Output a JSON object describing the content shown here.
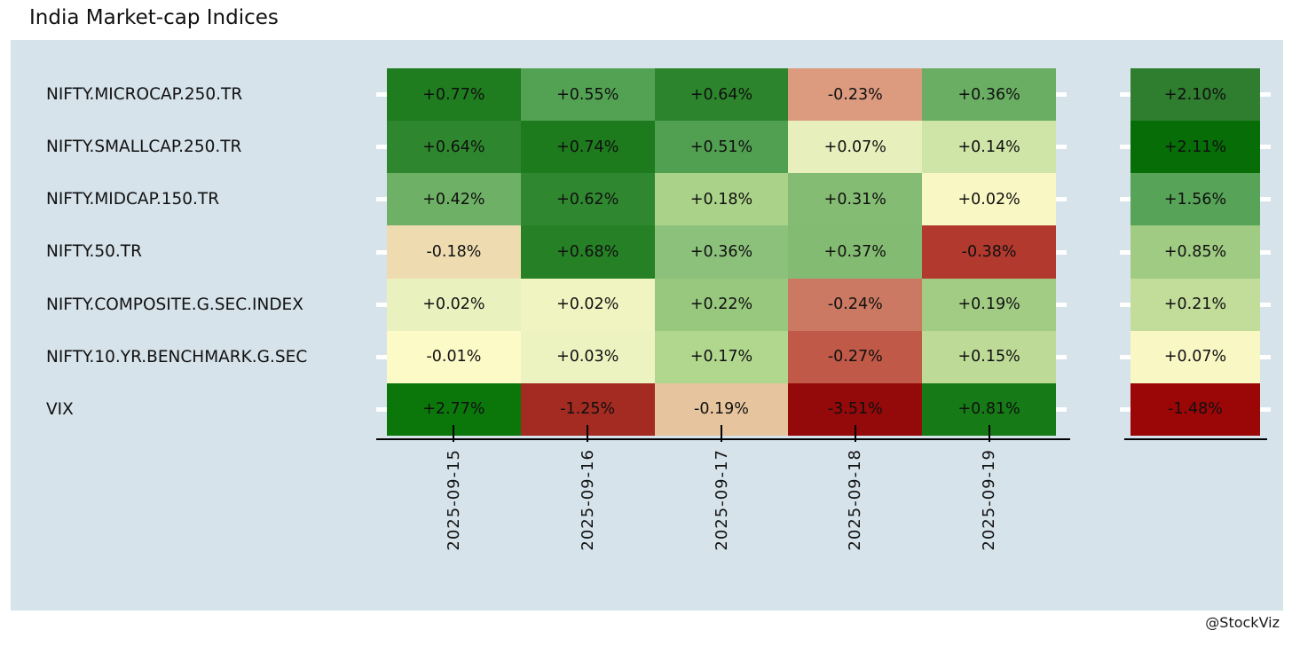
{
  "page": {
    "title": "India Market-cap Indices",
    "credit": "@StockViz"
  },
  "chart_data": {
    "type": "heatmap",
    "title": "India Market-cap Indices",
    "x_labels": [
      "2025-09-15",
      "2025-09-16",
      "2025-09-17",
      "2025-09-18",
      "2025-09-19"
    ],
    "value_unit": "percent daily return",
    "panel_background": "#d6e3eb",
    "colormap": "red-yellow-green diverging",
    "grid": "off",
    "legend_position": "none",
    "rows": [
      {
        "label": "NIFTY.MICROCAP.250.TR",
        "values": [
          0.77,
          0.55,
          0.64,
          -0.23,
          0.36
        ],
        "display": [
          "+0.77%",
          "+0.55%",
          "+0.64%",
          "-0.23%",
          "+0.36%"
        ],
        "colors": [
          "#1f7c1f",
          "#53a253",
          "#2c852c",
          "#dc9a7e",
          "#69ae62"
        ],
        "summary_value": 2.1,
        "summary_display": "+2.10%",
        "summary_color": "#2f7d2f"
      },
      {
        "label": "NIFTY.SMALLCAP.250.TR",
        "values": [
          0.64,
          0.74,
          0.51,
          0.07,
          0.14
        ],
        "display": [
          "+0.64%",
          "+0.74%",
          "+0.51%",
          "+0.07%",
          "+0.14%"
        ],
        "colors": [
          "#2e872e",
          "#1d7a1d",
          "#51a051",
          "#e7f0bc",
          "#cfe4a7"
        ],
        "summary_value": 2.11,
        "summary_display": "+2.11%",
        "summary_color": "#076d07"
      },
      {
        "label": "NIFTY.MIDCAP.150.TR",
        "values": [
          0.42,
          0.62,
          0.18,
          0.31,
          0.02
        ],
        "display": [
          "+0.42%",
          "+0.62%",
          "+0.18%",
          "+0.31%",
          "+0.02%"
        ],
        "colors": [
          "#6eb065",
          "#2f882f",
          "#aad288",
          "#85bc73",
          "#f9f7c4"
        ],
        "summary_value": 1.56,
        "summary_display": "+1.56%",
        "summary_color": "#57a357"
      },
      {
        "label": "NIFTY.50.TR",
        "values": [
          -0.18,
          0.68,
          0.36,
          0.37,
          -0.38
        ],
        "display": [
          "-0.18%",
          "+0.68%",
          "+0.36%",
          "+0.37%",
          "-0.38%"
        ],
        "colors": [
          "#eedbb0",
          "#268026",
          "#8cc17b",
          "#84bb72",
          "#b2392e"
        ],
        "summary_value": 0.85,
        "summary_display": "+0.85%",
        "summary_color": "#a0cb82"
      },
      {
        "label": "NIFTY.COMPOSITE.G.SEC.INDEX",
        "values": [
          0.02,
          0.02,
          0.22,
          -0.24,
          0.19
        ],
        "display": [
          "+0.02%",
          "+0.02%",
          "+0.22%",
          "-0.24%",
          "+0.19%"
        ],
        "colors": [
          "#e9f1bf",
          "#eff4c1",
          "#98c87e",
          "#cb7963",
          "#a2cc84"
        ],
        "summary_value": 0.21,
        "summary_display": "+0.21%",
        "summary_color": "#c2dd9a"
      },
      {
        "label": "NIFTY.10.YR.BENCHMARK.G.SEC",
        "values": [
          -0.01,
          0.03,
          0.17,
          -0.27,
          0.15
        ],
        "display": [
          "-0.01%",
          "+0.03%",
          "+0.17%",
          "-0.27%",
          "+0.15%"
        ],
        "colors": [
          "#fcfac7",
          "#edf3c0",
          "#b1d68d",
          "#c05947",
          "#bddb96"
        ],
        "summary_value": 0.07,
        "summary_display": "+0.07%",
        "summary_color": "#f9f8c5"
      },
      {
        "label": "VIX",
        "values": [
          2.77,
          -1.25,
          -0.19,
          -3.51,
          0.81
        ],
        "display": [
          "+2.77%",
          "-1.25%",
          "-0.19%",
          "-3.51%",
          "+0.81%"
        ],
        "colors": [
          "#0b770b",
          "#a32b21",
          "#e6c49d",
          "#940909",
          "#167a16"
        ],
        "summary_value": -1.48,
        "summary_display": "-1.48%",
        "summary_color": "#9b0707"
      }
    ]
  }
}
